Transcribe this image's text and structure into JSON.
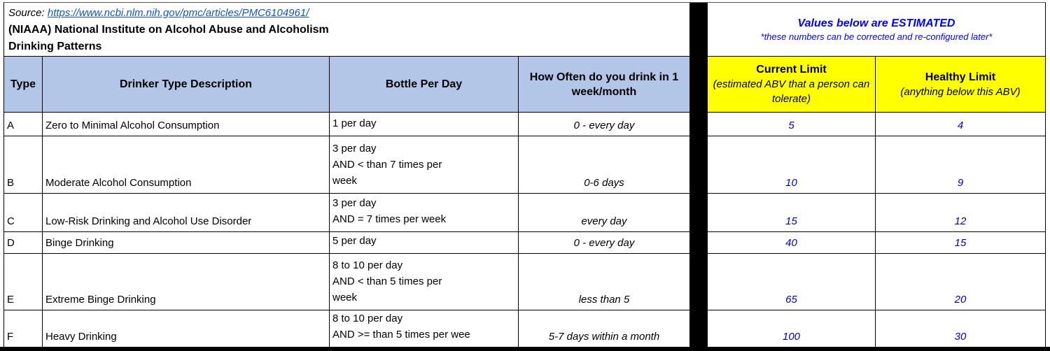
{
  "header": {
    "source_label": "Source:",
    "source_url": "https://www.ncbi.nlm.nih.gov/pmc/articles/PMC6104961/",
    "org_line": "(NIAAA) National Institute on Alcohol Abuse and Alcoholism",
    "subtitle": "Drinking Patterns",
    "estimated_title": "Values below are ESTIMATED",
    "estimated_note": "*these numbers can be corrected and re-configured later*"
  },
  "columns": {
    "type": "Type",
    "description": "Drinker Type Description",
    "bottles": "Bottle Per Day",
    "frequency": "How Often do you drink in 1 week/month",
    "current_limit_title": "Current Limit",
    "current_limit_sub": "(estimated ABV that a person can tolerate)",
    "healthy_limit_title": "Healthy Limit",
    "healthy_limit_sub": "(anything below this ABV)"
  },
  "rows": [
    {
      "type": "A",
      "description": "Zero to Minimal Alcohol Consumption",
      "bottles": "1 per day",
      "frequency": "0 - every day",
      "current": "5",
      "healthy": "4"
    },
    {
      "type": "B",
      "description": "Moderate Alcohol Consumption",
      "bottles": "3 per day\nAND < than 7 times per\nweek",
      "frequency": "0-6 days",
      "current": "10",
      "healthy": "9"
    },
    {
      "type": "C",
      "description": "Low-Risk Drinking and Alcohol Use Disorder",
      "bottles": "3 per day\nAND = 7 times per week",
      "frequency": "every day",
      "current": "15",
      "healthy": "12"
    },
    {
      "type": "D",
      "description": "Binge Drinking",
      "bottles": "5 per day",
      "frequency": "0 - every day",
      "current": "40",
      "healthy": "15"
    },
    {
      "type": "E",
      "description": "Extreme Binge Drinking",
      "bottles": "8 to 10 per day\nAND < than 5 times per\nweek",
      "frequency": "less than 5",
      "current": "65",
      "healthy": "20"
    },
    {
      "type": "F",
      "description": "Heavy Drinking",
      "bottles": "8 to 10 per day\nAND >= than 5 times per wee",
      "frequency": "5-7 days within a month",
      "current": "100",
      "healthy": "30"
    }
  ],
  "colors": {
    "header_blue": "#B4C6E7",
    "highlight_yellow": "#FFFF00",
    "value_blue": "#0000CC",
    "link_blue": "#1155CC",
    "note_blue": "#0000FF",
    "separator_black": "#000000"
  }
}
